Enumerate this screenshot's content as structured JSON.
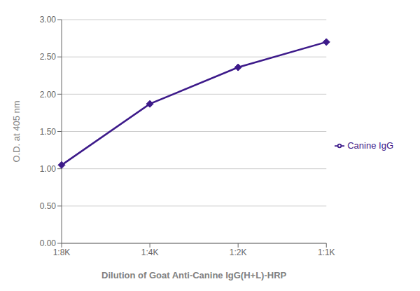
{
  "chart_data": {
    "type": "line",
    "xlabel": "Dilution of Goat Anti-Canine IgG(H+L)-HRP",
    "ylabel": "O.D. at 405 nm",
    "categories": [
      "1:8K",
      "1:4K",
      "1:2K",
      "1:1K"
    ],
    "series": [
      {
        "name": "Canine IgG",
        "color": "#3d1a8a",
        "values": [
          1.05,
          1.87,
          2.36,
          2.7
        ],
        "marker": "diamond",
        "line_style": "solid"
      }
    ],
    "ylim": [
      0.0,
      3.0
    ],
    "yticks": [
      {
        "value": 0.0,
        "label": "0.00"
      },
      {
        "value": 0.5,
        "label": "0.50"
      },
      {
        "value": 1.0,
        "label": "1.00"
      },
      {
        "value": 1.5,
        "label": "1.50"
      },
      {
        "value": 2.0,
        "label": "2.00"
      },
      {
        "value": 2.5,
        "label": "2.50"
      },
      {
        "value": 3.0,
        "label": "3.00"
      }
    ],
    "grid": "y",
    "legend": "right"
  }
}
